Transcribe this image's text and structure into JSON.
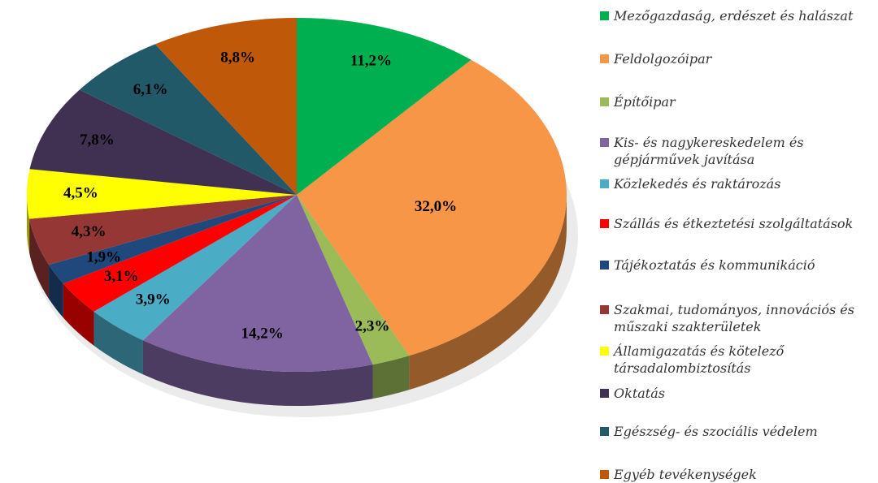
{
  "chart_data": {
    "type": "pie",
    "categories": [
      "Mezőgazdaság, erdészet és halászat",
      "Feldolgozóipar",
      "Építőipar",
      "Kis- és nagykereskedelem és gépjárművek javítása",
      "Közlekedés és raktározás",
      "Szállás és étkeztetési szolgáltatások",
      "Tájékoztatás és kommunikáció",
      "Szakmai, tudományos, innovációs és műszaki szakterületek",
      "Államigazatás és kötelező társadalombiztosítás",
      "Oktatás",
      "Egészség- és szociális védelem",
      "Egyéb tevékenységek"
    ],
    "values": [
      11.2,
      32.0,
      2.3,
      14.2,
      3.9,
      3.1,
      1.9,
      4.3,
      4.5,
      7.8,
      6.1,
      8.8
    ],
    "value_labels": [
      "11,2%",
      "32,0%",
      "2,3%",
      "14,2%",
      "3,9%",
      "3,1%",
      "1,9%",
      "4,3%",
      "4,5%",
      "7,8%",
      "6,1%",
      "8,8%"
    ],
    "colors": [
      "#00b050",
      "#f79646",
      "#9bbb59",
      "#8064a2",
      "#4bacc6",
      "#ff0000",
      "#1f497d",
      "#953735",
      "#ffff00",
      "#403152",
      "#215968",
      "#c0580a"
    ],
    "legend": "right"
  }
}
